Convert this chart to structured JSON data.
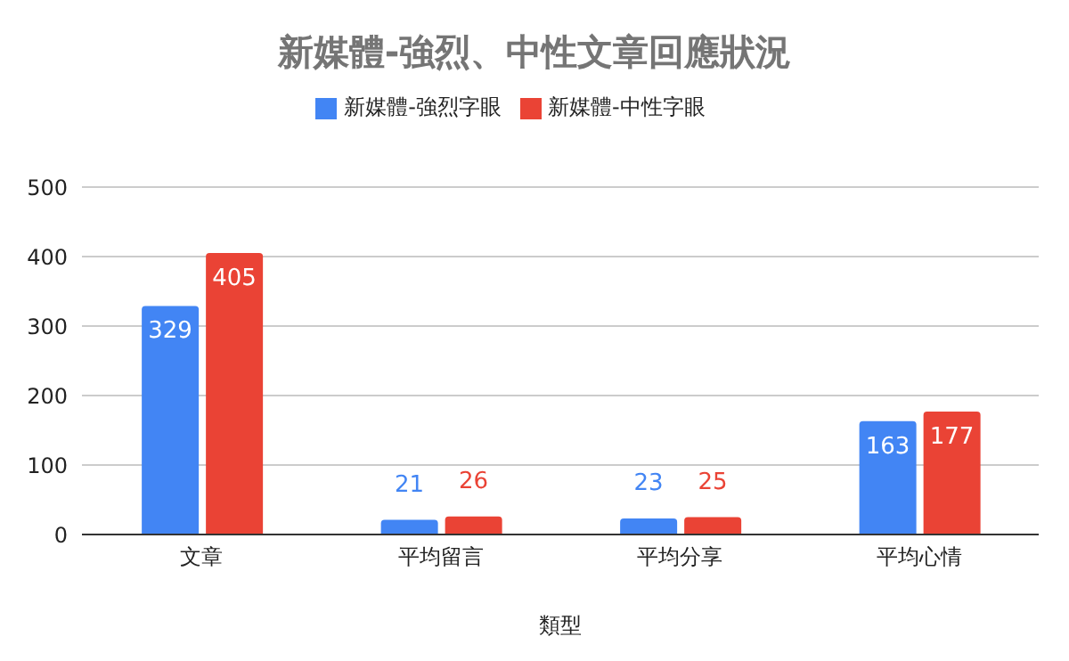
{
  "chart_data": {
    "type": "bar",
    "title": "新媒體-強烈、中性文章回應狀況",
    "xlabel": "類型",
    "categories": [
      "文章",
      "平均留言",
      "平均分享",
      "平均心情"
    ],
    "series": [
      {
        "name": "新媒體-強烈字眼",
        "color": "#4285f4",
        "values": [
          329,
          21,
          23,
          163
        ]
      },
      {
        "name": "新媒體-中性字眼",
        "color": "#ea4335",
        "values": [
          405,
          26,
          25,
          177
        ]
      }
    ],
    "ylim": [
      0,
      500
    ],
    "yticks": [
      0,
      100,
      200,
      300,
      400,
      500
    ],
    "grid": "y",
    "legend": "top",
    "data_labels": true
  }
}
